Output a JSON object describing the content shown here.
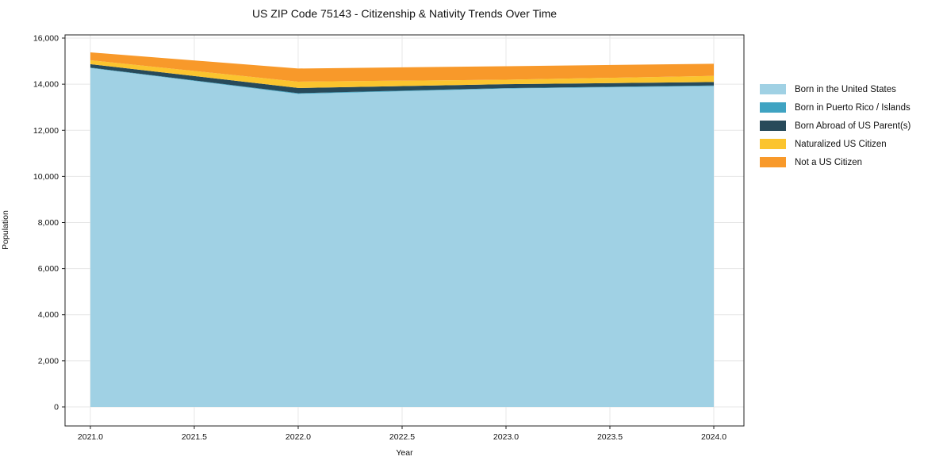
{
  "chart_data": {
    "type": "area",
    "stacked": true,
    "title": "US ZIP Code 75143 - Citizenship & Nativity Trends Over Time",
    "xlabel": "Year",
    "ylabel": "Population",
    "x": [
      2021,
      2022,
      2023,
      2024
    ],
    "series": [
      {
        "name": "Born in the United States",
        "color": "#a0d1e4",
        "values": [
          14700,
          13580,
          13810,
          13920
        ]
      },
      {
        "name": "Born in Puerto Rico / Islands",
        "color": "#3fa3c2",
        "values": [
          20,
          30,
          20,
          25
        ]
      },
      {
        "name": "Born Abroad of US Parent(s)",
        "color": "#274a5a",
        "values": [
          150,
          225,
          170,
          150
        ]
      },
      {
        "name": "Naturalized US Citizen",
        "color": "#fbc42e",
        "values": [
          170,
          275,
          195,
          265
        ]
      },
      {
        "name": "Not a US Citizen",
        "color": "#f8992a",
        "values": [
          340,
          570,
          585,
          525
        ]
      }
    ],
    "xticks": {
      "values": [
        2021.0,
        2021.5,
        2022.0,
        2022.5,
        2023.0,
        2023.5,
        2024.0
      ],
      "labels": [
        "2021.0",
        "2021.5",
        "2022.0",
        "2022.5",
        "2023.0",
        "2023.5",
        "2024.0"
      ]
    },
    "yticks": {
      "values": [
        0,
        2000,
        4000,
        6000,
        8000,
        10000,
        12000,
        14000,
        16000
      ],
      "labels": [
        "0",
        "2,000",
        "4,000",
        "6,000",
        "8,000",
        "10,000",
        "12,000",
        "14,000",
        "16,000"
      ]
    },
    "xlim": [
      2020.878,
      2024.145
    ],
    "ylim": [
      -826,
      16138
    ],
    "grid": true,
    "grid_color": "#e7e7e7",
    "axis_color": "#222222",
    "text_color": "#111111",
    "legend_position": "right"
  }
}
